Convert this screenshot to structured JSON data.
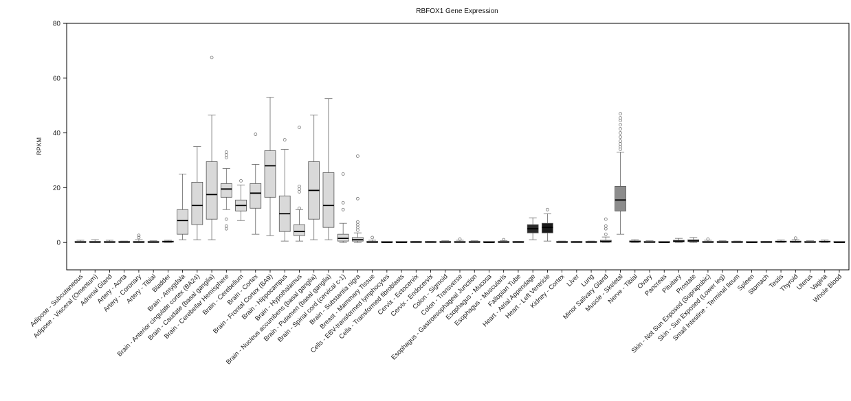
{
  "chart_data": {
    "type": "box",
    "title": "RBFOX1 Gene Expression",
    "xlabel": "",
    "ylabel": "RPKM",
    "ylim": [
      -10,
      80
    ],
    "yticks": [
      0,
      20,
      40,
      60,
      80
    ],
    "grid": false,
    "legend": "none",
    "categories": [
      {
        "label": "Adipose - Subcutaneous",
        "q1": 0,
        "median": 0.1,
        "q3": 0.3,
        "wlo": 0,
        "whi": 0.8,
        "outliers": [],
        "color": "#d9d9d9"
      },
      {
        "label": "Adipose - Visceral (Omentum)",
        "q1": 0,
        "median": 0.1,
        "q3": 0.3,
        "wlo": 0,
        "whi": 1.0,
        "outliers": [],
        "color": "#d9d9d9"
      },
      {
        "label": "Adrenal Gland",
        "q1": 0,
        "median": 0.1,
        "q3": 0.3,
        "wlo": 0,
        "whi": 0.8,
        "outliers": [],
        "color": "#d9d9d9"
      },
      {
        "label": "Artery - Aorta",
        "q1": 0,
        "median": 0.1,
        "q3": 0.2,
        "wlo": 0,
        "whi": 0.5,
        "outliers": [],
        "color": "#d9d9d9"
      },
      {
        "label": "Artery - Coronary",
        "q1": 0,
        "median": 0.1,
        "q3": 0.3,
        "wlo": 0,
        "whi": 1.0,
        "outliers": [
          1.8,
          2.6
        ],
        "color": "#d9d9d9"
      },
      {
        "label": "Artery - Tibial",
        "q1": 0,
        "median": 0.1,
        "q3": 0.2,
        "wlo": 0,
        "whi": 0.6,
        "outliers": [],
        "color": "#d9d9d9"
      },
      {
        "label": "Bladder",
        "q1": 0.1,
        "median": 0.3,
        "q3": 0.5,
        "wlo": 0,
        "whi": 0.8,
        "outliers": [],
        "color": "#d9d9d9"
      },
      {
        "label": "Brain - Amygdala",
        "q1": 3,
        "median": 8,
        "q3": 12,
        "wlo": 1,
        "whi": 25,
        "outliers": [],
        "color": "#d9d9d9"
      },
      {
        "label": "Brain - Anterior cingulate cortex (BA24)",
        "q1": 6.5,
        "median": 13.5,
        "q3": 22,
        "wlo": 1,
        "whi": 35,
        "outliers": [],
        "color": "#d9d9d9"
      },
      {
        "label": "Brain - Caudate (basal ganglia)",
        "q1": 8.5,
        "median": 17.5,
        "q3": 29.5,
        "wlo": 1,
        "whi": 46.5,
        "outliers": [
          67.5
        ],
        "color": "#d9d9d9"
      },
      {
        "label": "Brain - Cerebellar Hemisphere",
        "q1": 16.5,
        "median": 19.5,
        "q3": 21.5,
        "wlo": 12,
        "whi": 27,
        "outliers": [
          8.5,
          6,
          5,
          31,
          32,
          33
        ],
        "color": "#d9d9d9"
      },
      {
        "label": "Brain - Cerebellum",
        "q1": 11.5,
        "median": 13.5,
        "q3": 15.5,
        "wlo": 8,
        "whi": 21,
        "outliers": [
          22.5
        ],
        "color": "#d9d9d9"
      },
      {
        "label": "Brain - Cortex",
        "q1": 12.5,
        "median": 18,
        "q3": 21.5,
        "wlo": 3,
        "whi": 28.5,
        "outliers": [
          39.5
        ],
        "color": "#d9d9d9"
      },
      {
        "label": "Brain - Frontal Cortex (BA9)",
        "q1": 16.5,
        "median": 28,
        "q3": 33.5,
        "wlo": 2.5,
        "whi": 53,
        "outliers": [],
        "color": "#d9d9d9"
      },
      {
        "label": "Brain - Hippocampus",
        "q1": 4,
        "median": 10.5,
        "q3": 17,
        "wlo": 0.5,
        "whi": 34,
        "outliers": [
          37.5
        ],
        "color": "#d9d9d9"
      },
      {
        "label": "Brain - Hypothalamus",
        "q1": 2.5,
        "median": 4,
        "q3": 6.5,
        "wlo": 0.5,
        "whi": 12,
        "outliers": [
          12.5,
          18.5,
          19.5,
          20.5,
          42
        ],
        "color": "#d9d9d9"
      },
      {
        "label": "Brain - Nucleus accumbens (basal ganglia)",
        "q1": 8.5,
        "median": 19,
        "q3": 29.5,
        "wlo": 1,
        "whi": 46.5,
        "outliers": [],
        "color": "#d9d9d9"
      },
      {
        "label": "Brain - Putamen (basal ganglia)",
        "q1": 5.5,
        "median": 13.5,
        "q3": 25.5,
        "wlo": 1,
        "whi": 52.5,
        "outliers": [],
        "color": "#d9d9d9"
      },
      {
        "label": "Brain - Spinal cord (cervical c-1)",
        "q1": 0.5,
        "median": 1.5,
        "q3": 3,
        "wlo": 0,
        "whi": 7,
        "outliers": [
          12,
          14.5,
          25
        ],
        "color": "#d9d9d9"
      },
      {
        "label": "Brain - Substantia nigra",
        "q1": 0.5,
        "median": 1,
        "q3": 1.8,
        "wlo": 0,
        "whi": 3.5,
        "outliers": [
          4.5,
          5.5,
          6.5,
          7.5,
          16,
          31.5
        ],
        "color": "#d9d9d9"
      },
      {
        "label": "Breast - Mammary Tissue",
        "q1": 0,
        "median": 0.1,
        "q3": 0.3,
        "wlo": 0,
        "whi": 0.8,
        "outliers": [
          1.8
        ],
        "color": "#d9d9d9"
      },
      {
        "label": "Cells - EBV-transformed lymphocytes",
        "q1": 0,
        "median": 0,
        "q3": 0.1,
        "wlo": 0,
        "whi": 0.2,
        "outliers": [],
        "color": "#d9d9d9"
      },
      {
        "label": "Cells - Transformed fibroblasts",
        "q1": 0,
        "median": 0,
        "q3": 0.1,
        "wlo": 0,
        "whi": 0.2,
        "outliers": [],
        "color": "#d9d9d9"
      },
      {
        "label": "Cervix - Ectocervix",
        "q1": 0,
        "median": 0.1,
        "q3": 0.2,
        "wlo": 0,
        "whi": 0.4,
        "outliers": [],
        "color": "#d9d9d9"
      },
      {
        "label": "Cervix - Endocervix",
        "q1": 0,
        "median": 0.1,
        "q3": 0.2,
        "wlo": 0,
        "whi": 0.4,
        "outliers": [],
        "color": "#d9d9d9"
      },
      {
        "label": "Colon - Sigmoid",
        "q1": 0,
        "median": 0.1,
        "q3": 0.3,
        "wlo": 0,
        "whi": 0.6,
        "outliers": [],
        "color": "#d9d9d9"
      },
      {
        "label": "Colon - Transverse",
        "q1": 0,
        "median": 0.1,
        "q3": 0.3,
        "wlo": 0,
        "whi": 0.8,
        "outliers": [
          1.2
        ],
        "color": "#d9d9d9"
      },
      {
        "label": "Esophagus - Gastroesophageal Junction",
        "q1": 0,
        "median": 0.1,
        "q3": 0.3,
        "wlo": 0,
        "whi": 0.6,
        "outliers": [],
        "color": "#d9d9d9"
      },
      {
        "label": "Esophagus - Mucosa",
        "q1": 0,
        "median": 0,
        "q3": 0.1,
        "wlo": 0,
        "whi": 0.3,
        "outliers": [],
        "color": "#d9d9d9"
      },
      {
        "label": "Esophagus - Muscularis",
        "q1": 0,
        "median": 0.1,
        "q3": 0.3,
        "wlo": 0,
        "whi": 0.7,
        "outliers": [
          1.0
        ],
        "color": "#d9d9d9"
      },
      {
        "label": "Fallopian Tube",
        "q1": 0,
        "median": 0.1,
        "q3": 0.2,
        "wlo": 0,
        "whi": 0.4,
        "outliers": [],
        "color": "#d9d9d9"
      },
      {
        "label": "Heart - Atrial Appendage",
        "q1": 3.5,
        "median": 5,
        "q3": 6.5,
        "wlo": 1,
        "whi": 9,
        "outliers": [],
        "color": "#2b2b2b"
      },
      {
        "label": "Heart - Left Ventricle",
        "q1": 3.5,
        "median": 5.5,
        "q3": 7,
        "wlo": 0.5,
        "whi": 10.5,
        "outliers": [
          12
        ],
        "color": "#1a1a1a"
      },
      {
        "label": "Kidney - Cortex",
        "q1": 0,
        "median": 0.1,
        "q3": 0.3,
        "wlo": 0,
        "whi": 0.5,
        "outliers": [],
        "color": "#d9d9d9"
      },
      {
        "label": "Liver",
        "q1": 0,
        "median": 0.1,
        "q3": 0.2,
        "wlo": 0,
        "whi": 0.4,
        "outliers": [],
        "color": "#d9d9d9"
      },
      {
        "label": "Lung",
        "q1": 0,
        "median": 0.1,
        "q3": 0.2,
        "wlo": 0,
        "whi": 0.5,
        "outliers": [],
        "color": "#d9d9d9"
      },
      {
        "label": "Minor Salivary Gland",
        "q1": 0.1,
        "median": 0.4,
        "q3": 0.8,
        "wlo": 0,
        "whi": 2,
        "outliers": [
          3,
          5,
          6,
          8.5
        ],
        "color": "#d9d9d9"
      },
      {
        "label": "Muscle - Skeletal",
        "q1": 11.5,
        "median": 15.5,
        "q3": 20.5,
        "wlo": 3,
        "whi": 33,
        "outliers": [
          34,
          35,
          36,
          37,
          38.5,
          40,
          41.5,
          43,
          44.5,
          45.5,
          47
        ],
        "color": "#8c8c8c"
      },
      {
        "label": "Nerve - Tibial",
        "q1": 0.1,
        "median": 0.3,
        "q3": 0.6,
        "wlo": 0,
        "whi": 1.0,
        "outliers": [],
        "color": "#d9d9d9"
      },
      {
        "label": "Ovary",
        "q1": 0,
        "median": 0.1,
        "q3": 0.3,
        "wlo": 0,
        "whi": 0.6,
        "outliers": [],
        "color": "#d9d9d9"
      },
      {
        "label": "Pancreas",
        "q1": 0,
        "median": 0,
        "q3": 0.1,
        "wlo": 0,
        "whi": 0.3,
        "outliers": [],
        "color": "#d9d9d9"
      },
      {
        "label": "Pituitary",
        "q1": 0.2,
        "median": 0.5,
        "q3": 0.8,
        "wlo": 0,
        "whi": 1.5,
        "outliers": [],
        "color": "#d9d9d9"
      },
      {
        "label": "Prostate",
        "q1": 0.3,
        "median": 0.6,
        "q3": 1.0,
        "wlo": 0,
        "whi": 1.8,
        "outliers": [],
        "color": "#d9d9d9"
      },
      {
        "label": "Skin - Not Sun Exposed (Suprapubic)",
        "q1": 0,
        "median": 0.1,
        "q3": 0.3,
        "wlo": 0,
        "whi": 0.8,
        "outliers": [
          1.2
        ],
        "color": "#d9d9d9"
      },
      {
        "label": "Skin - Sun Exposed (Lower leg)",
        "q1": 0,
        "median": 0.1,
        "q3": 0.2,
        "wlo": 0,
        "whi": 0.6,
        "outliers": [],
        "color": "#d9d9d9"
      },
      {
        "label": "Small Intestine - Terminal Ileum",
        "q1": 0,
        "median": 0.1,
        "q3": 0.2,
        "wlo": 0,
        "whi": 0.5,
        "outliers": [],
        "color": "#d9d9d9"
      },
      {
        "label": "Spleen",
        "q1": 0,
        "median": 0,
        "q3": 0.1,
        "wlo": 0,
        "whi": 0.3,
        "outliers": [],
        "color": "#d9d9d9"
      },
      {
        "label": "Stomach",
        "q1": 0,
        "median": 0.1,
        "q3": 0.2,
        "wlo": 0,
        "whi": 0.4,
        "outliers": [],
        "color": "#d9d9d9"
      },
      {
        "label": "Testis",
        "q1": 0.1,
        "median": 0.3,
        "q3": 0.5,
        "wlo": 0,
        "whi": 0.9,
        "outliers": [],
        "color": "#d9d9d9"
      },
      {
        "label": "Thyroid",
        "q1": 0.1,
        "median": 0.2,
        "q3": 0.4,
        "wlo": 0,
        "whi": 1.0,
        "outliers": [
          1.6
        ],
        "color": "#d9d9d9"
      },
      {
        "label": "Uterus",
        "q1": 0,
        "median": 0.1,
        "q3": 0.3,
        "wlo": 0,
        "whi": 0.6,
        "outliers": [],
        "color": "#d9d9d9"
      },
      {
        "label": "Vagina",
        "q1": 0.1,
        "median": 0.3,
        "q3": 0.5,
        "wlo": 0,
        "whi": 0.9,
        "outliers": [],
        "color": "#d9d9d9"
      },
      {
        "label": "Whole Blood",
        "q1": 0,
        "median": 0,
        "q3": 0.1,
        "wlo": 0,
        "whi": 0.3,
        "outliers": [],
        "color": "#d9d9d9"
      }
    ]
  }
}
